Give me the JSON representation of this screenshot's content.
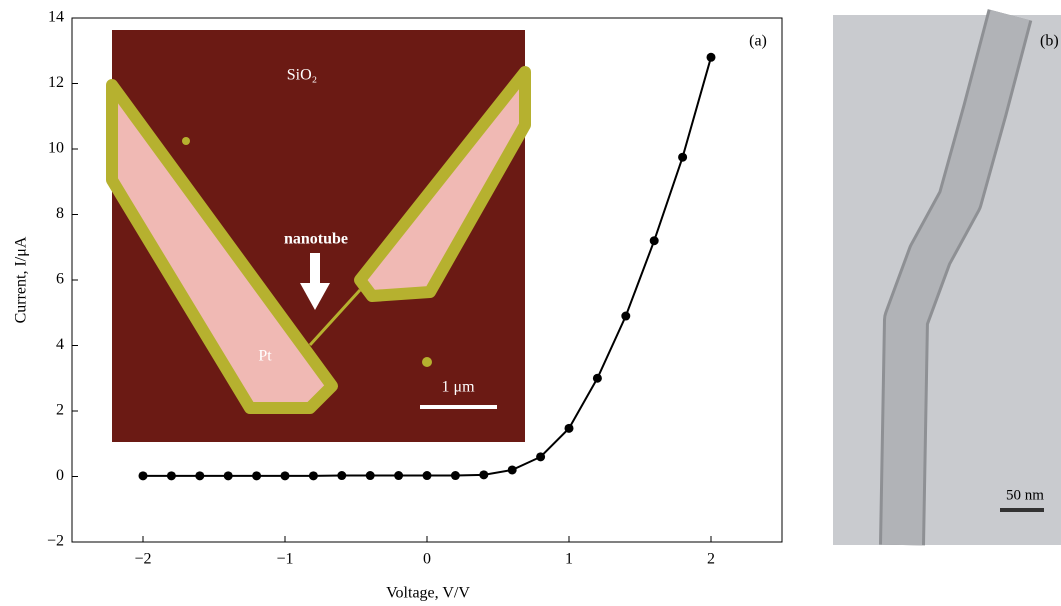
{
  "chart_data": {
    "type": "line",
    "x_label": "Voltage, V/V",
    "y_label": "Current, I/μA",
    "panel_a_label": "(a)",
    "panel_b_label": "(b)",
    "inset_labels": {
      "oxide": "SiO₂",
      "tube": "nanotube",
      "electrode": "Pt",
      "scale": "1 μm"
    },
    "image_b_scale": "50 nm",
    "x": [
      -2,
      -1.8,
      -1.6,
      -1.4,
      -1.2,
      -1,
      -0.8,
      -0.6,
      -0.4,
      -0.2,
      0,
      0.2,
      0.4,
      0.6,
      0.8,
      1,
      1.2,
      1.4,
      1.6,
      1.8,
      2
    ],
    "values": [
      0.02,
      0.02,
      0.02,
      0.02,
      0.02,
      0.02,
      0.02,
      0.03,
      0.03,
      0.03,
      0.03,
      0.03,
      0.05,
      0.2,
      0.6,
      1.47,
      3.0,
      4.9,
      7.2,
      9.75,
      12.8
    ],
    "color": "#000000",
    "xlim": [
      -2.5,
      2.5
    ],
    "xticks": [
      {
        "value": -2,
        "label": "−2"
      },
      {
        "value": -1,
        "label": "−1"
      },
      0,
      1,
      2
    ],
    "ylim": [
      -2,
      14
    ],
    "yticks": [
      {
        "value": -2,
        "label": "−2"
      },
      0,
      2,
      4,
      6,
      8,
      10,
      12,
      14
    ]
  }
}
